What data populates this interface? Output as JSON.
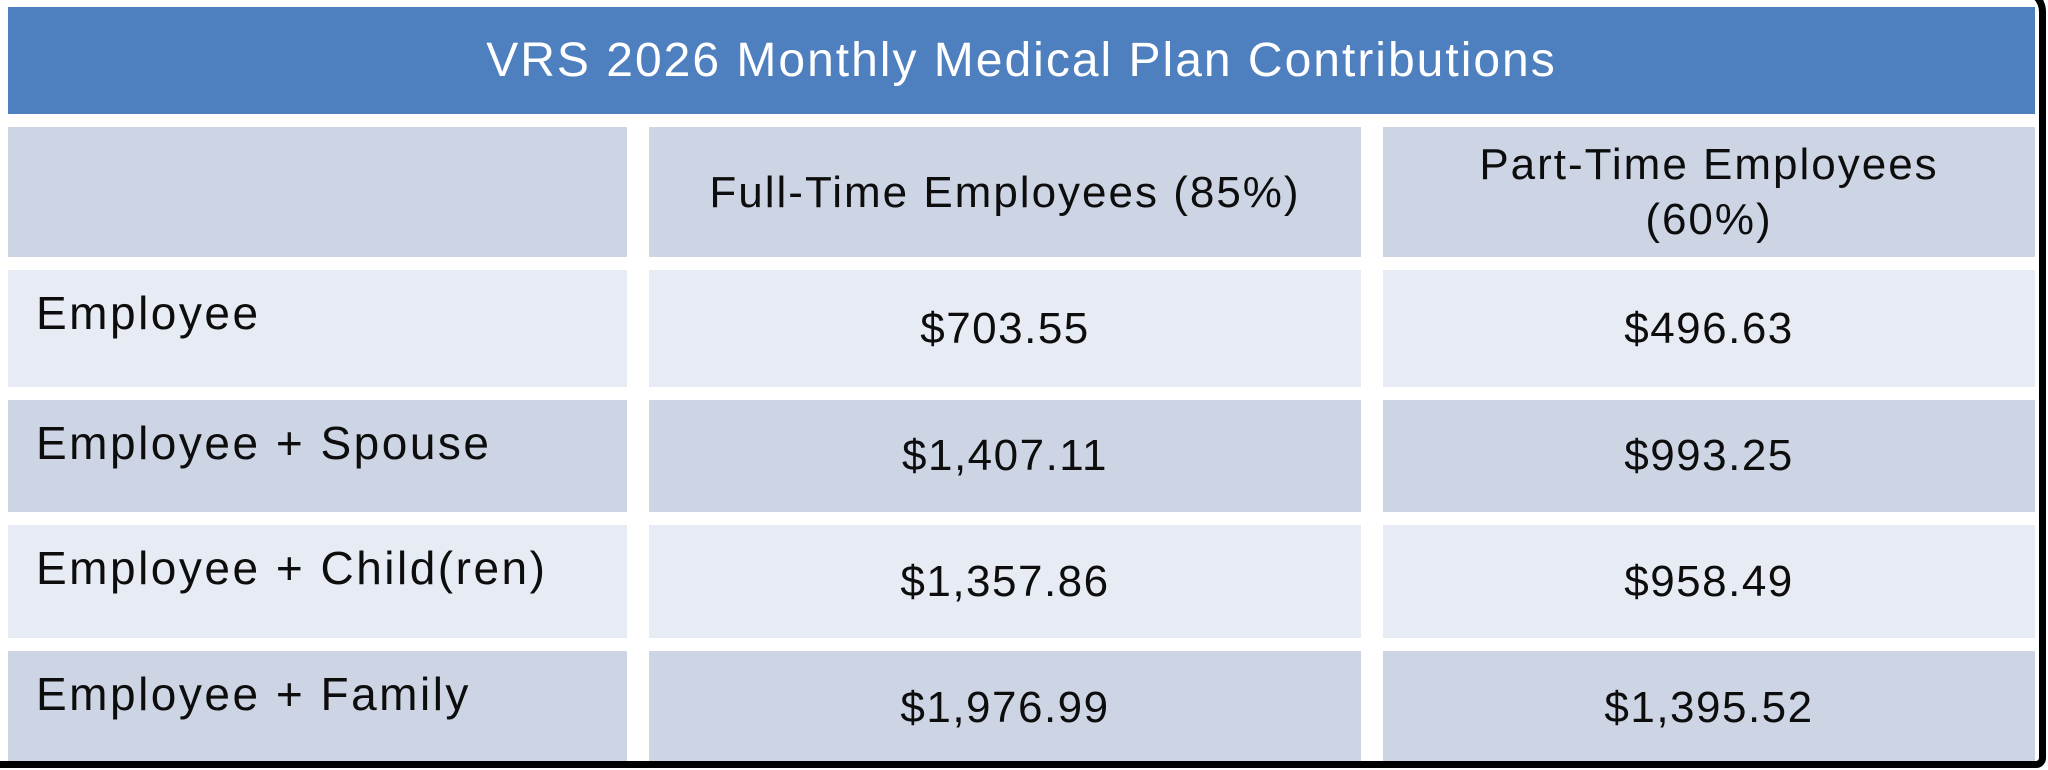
{
  "title": "VRS 2026 Monthly Medical Plan Contributions",
  "table": {
    "columns": [
      {
        "label": ""
      },
      {
        "label": "Full-Time Employees (85%)"
      },
      {
        "label": "Part-Time Employees (60%)"
      }
    ],
    "rows": [
      {
        "label": "Employee",
        "full_time": "$703.55",
        "part_time": "$496.63"
      },
      {
        "label": "Employee + Spouse",
        "full_time": "$1,407.11",
        "part_time": "$993.25"
      },
      {
        "label": "Employee + Child(ren)",
        "full_time": "$1,357.86",
        "part_time": "$958.49"
      },
      {
        "label": "Employee + Family",
        "full_time": "$1,976.99",
        "part_time": "$1,395.52"
      }
    ]
  },
  "chart_data": {
    "type": "table",
    "title": "VRS 2026 Monthly Medical Plan Contributions",
    "columns": [
      "",
      "Full-Time Employees (85%)",
      "Part-Time Employees (60%)"
    ],
    "rows": [
      [
        "Employee",
        "$703.55",
        "$496.63"
      ],
      [
        "Employee + Spouse",
        "$1,407.11",
        "$993.25"
      ],
      [
        "Employee + Child(ren)",
        "$1,357.86",
        "$958.49"
      ],
      [
        "Employee + Family",
        "$1,976.99",
        "$1,395.52"
      ]
    ]
  },
  "colors": {
    "title_bar_blue": "#4e7fbe",
    "band_dark": "#cdd5e5",
    "band_light": "#e7ebf3",
    "title_text": "#ffffff",
    "body_text": "#0d0d0d",
    "frame_black": "#000000"
  }
}
